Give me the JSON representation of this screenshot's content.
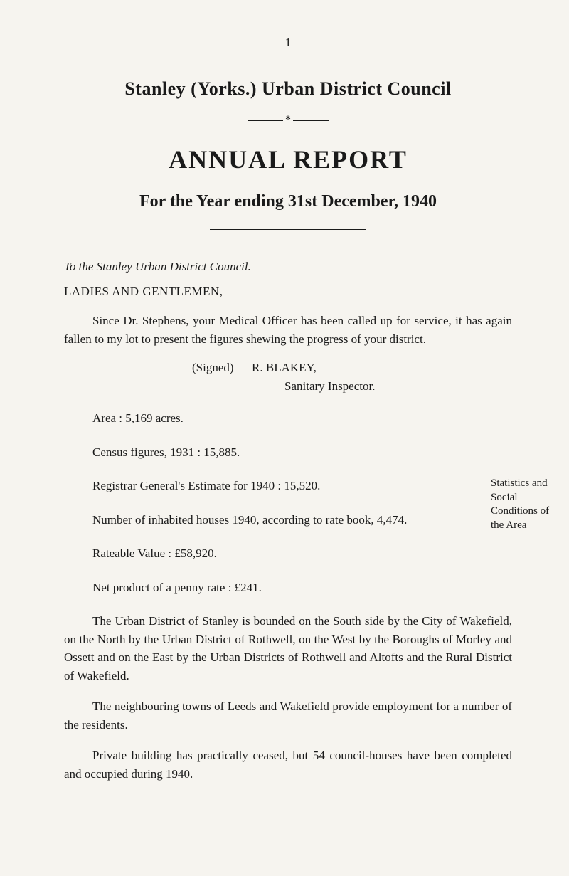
{
  "page_number": "1",
  "header": {
    "council_title": "Stanley (Yorks.) Urban District Council",
    "report_title": "ANNUAL REPORT",
    "subtitle": "For the Year ending 31st December, 1940"
  },
  "addressee_line": "To the Stanley Urban District Council.",
  "salutation": "LADIES AND GENTLEMEN,",
  "intro_para": "Since Dr. Stephens, your Medical Officer has been called up for service, it has again fallen to my lot to present the figures shewing the progress of your district.",
  "signed_label": "(Signed)",
  "signed_name": "R. BLAKEY,",
  "signed_role": "Sanitary Inspector.",
  "stats": {
    "area": "Area : 5,169 acres.",
    "census": "Census figures, 1931 : 15,885.",
    "registrar": "Registrar General's Estimate for 1940 : 15,520.",
    "inhabited": "Number of inhabited houses 1940, according to rate book, 4,474.",
    "rateable": "Rateable Value : £58,920.",
    "netproduct": "Net product of a penny rate : £241."
  },
  "side_note": "Statistics and Social Conditions of the Area",
  "closing_paras": {
    "p1": "The Urban District of Stanley is bounded on the South side by the City of Wakefield, on the North by the Urban District of Rothwell, on the West by the Boroughs of Morley and Ossett and on the East by the Urban Districts of Rothwell and Altofts and the Rural District of Wakefield.",
    "p2": "The neighbouring towns of Leeds and Wakefield provide employment for a number of the residents.",
    "p3": "Private building has practically ceased, but 54 council-houses have been completed and occupied during 1940."
  },
  "style": {
    "background_color": "#f6f4ef",
    "text_color": "#1a1a1a",
    "body_fontsize": 17,
    "title1_fontsize": 26,
    "title2_fontsize": 36,
    "title3_fontsize": 24,
    "sidenote_fontsize": 15
  }
}
